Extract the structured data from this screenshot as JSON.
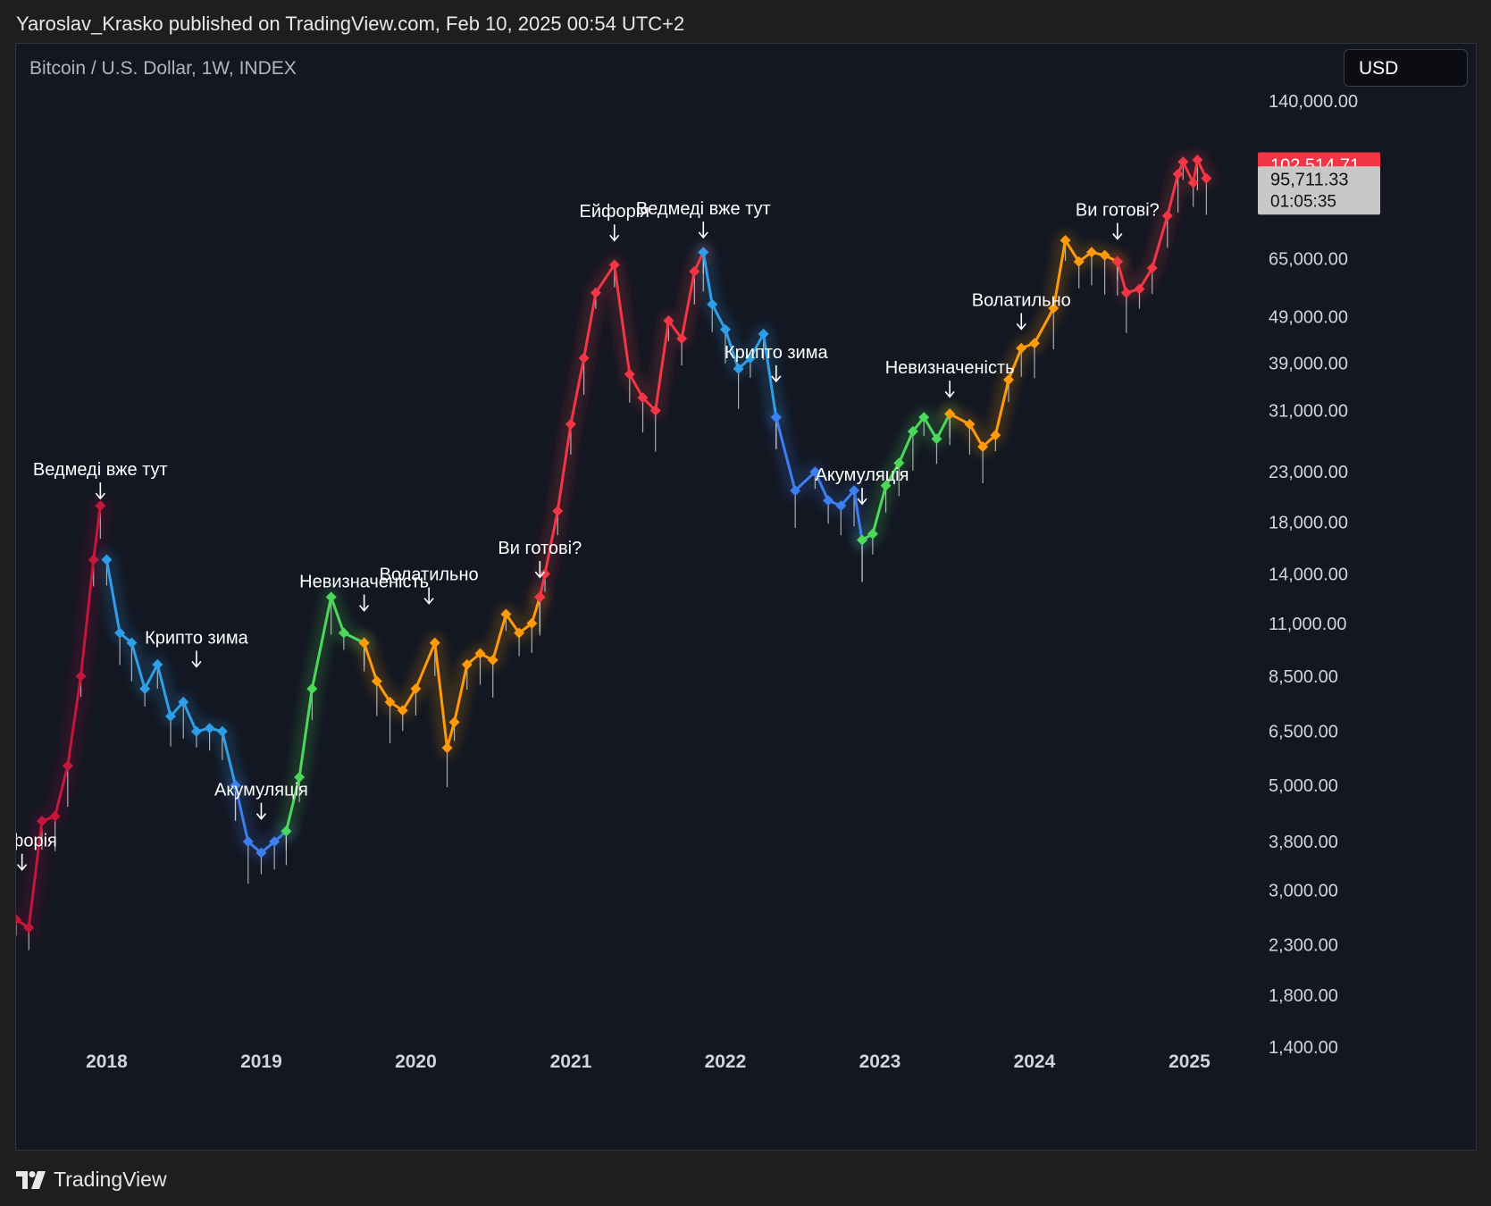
{
  "header": {
    "published_text": "Yaroslav_Krasko published on TradingView.com, Feb 10, 2025 00:54 UTC+2"
  },
  "chart_header": {
    "symbol": "Bitcoin / U.S. Dollar, 1W, INDEX",
    "currency_button": "USD"
  },
  "footer": {
    "brand": "TradingView",
    "logo_icon": "tradingview-logo-icon"
  },
  "colors": {
    "background": "#131722",
    "red": "#f23645",
    "dark_red": "#c2183b",
    "light_blue": "#2e9ee8",
    "blue": "#3d7ff0",
    "green": "#4cd95a",
    "orange": "#ff9b0a",
    "wick": "#d0d0d0",
    "axis_text": "#d1d4dc"
  },
  "chart_data": {
    "type": "line",
    "title": "Bitcoin / U.S. Dollar, 1W, INDEX",
    "scale": "log",
    "ylim": [
      1150,
      150000
    ],
    "xlim": [
      "2017-06-01",
      "2025-06-01"
    ],
    "grid": false,
    "y_ticks": [
      {
        "value": 1400,
        "label": "1,400.00"
      },
      {
        "value": 1800,
        "label": "1,800.00"
      },
      {
        "value": 2300,
        "label": "2,300.00"
      },
      {
        "value": 3000,
        "label": "3,000.00"
      },
      {
        "value": 3800,
        "label": "3,800.00"
      },
      {
        "value": 5000,
        "label": "5,000.00"
      },
      {
        "value": 6500,
        "label": "6,500.00"
      },
      {
        "value": 8500,
        "label": "8,500.00"
      },
      {
        "value": 11000,
        "label": "11,000.00"
      },
      {
        "value": 14000,
        "label": "14,000.00"
      },
      {
        "value": 18000,
        "label": "18,000.00"
      },
      {
        "value": 23000,
        "label": "23,000.00"
      },
      {
        "value": 31000,
        "label": "31,000.00"
      },
      {
        "value": 39000,
        "label": "39,000.00"
      },
      {
        "value": 49000,
        "label": "49,000.00"
      },
      {
        "value": 65000,
        "label": "65,000.00"
      },
      {
        "value": 140000,
        "label": "140,000.00"
      }
    ],
    "x_ticks": [
      {
        "date": "2018-01-01",
        "label": "2018"
      },
      {
        "date": "2019-01-01",
        "label": "2019"
      },
      {
        "date": "2020-01-01",
        "label": "2020"
      },
      {
        "date": "2021-01-01",
        "label": "2021"
      },
      {
        "date": "2022-01-01",
        "label": "2022"
      },
      {
        "date": "2023-01-01",
        "label": "2023"
      },
      {
        "date": "2024-01-01",
        "label": "2024"
      },
      {
        "date": "2025-01-01",
        "label": "2025"
      }
    ],
    "price_labels": {
      "high": {
        "value": 102514.71,
        "label": "102,514.71"
      },
      "last": {
        "value": 95711.33,
        "label": "95,711.33",
        "countdown": "01:05:35"
      }
    },
    "series": [
      {
        "points": [
          [
            "2017-06-01",
            2600
          ],
          [
            "2017-07-01",
            2500
          ],
          [
            "2017-08-01",
            4200
          ],
          [
            "2017-09-01",
            4300
          ],
          [
            "2017-10-01",
            5500
          ],
          [
            "2017-11-01",
            8500
          ],
          [
            "2017-12-01",
            15000
          ],
          [
            "2017-12-17",
            19500
          ]
        ]
      },
      {
        "points": [
          [
            "2018-01-01",
            15000
          ],
          [
            "2018-02-01",
            10500
          ],
          [
            "2018-03-01",
            10000
          ],
          [
            "2018-04-01",
            8000
          ],
          [
            "2018-05-01",
            9000
          ],
          [
            "2018-06-01",
            7000
          ],
          [
            "2018-07-01",
            7500
          ],
          [
            "2018-08-01",
            6500
          ],
          [
            "2018-09-01",
            6600
          ],
          [
            "2018-10-01",
            6500
          ],
          [
            "2018-11-01",
            5000
          ]
        ]
      },
      {
        "points": [
          [
            "2018-11-01",
            5000
          ],
          [
            "2018-12-01",
            3800
          ],
          [
            "2019-01-01",
            3600
          ],
          [
            "2019-02-01",
            3800
          ],
          [
            "2019-03-01",
            4000
          ]
        ]
      },
      {
        "points": [
          [
            "2019-03-01",
            4000
          ],
          [
            "2019-04-01",
            5200
          ],
          [
            "2019-05-01",
            8000
          ],
          [
            "2019-06-15",
            12500
          ],
          [
            "2019-07-15",
            10500
          ],
          [
            "2019-09-01",
            10000
          ]
        ]
      },
      {
        "points": [
          [
            "2019-09-01",
            10000
          ],
          [
            "2019-10-01",
            8300
          ],
          [
            "2019-11-01",
            7500
          ],
          [
            "2019-12-01",
            7200
          ],
          [
            "2020-01-01",
            8000
          ],
          [
            "2020-02-15",
            10000
          ],
          [
            "2020-03-15",
            6000
          ],
          [
            "2020-04-01",
            6800
          ],
          [
            "2020-05-01",
            9000
          ],
          [
            "2020-06-01",
            9500
          ],
          [
            "2020-07-01",
            9200
          ],
          [
            "2020-08-01",
            11500
          ],
          [
            "2020-09-01",
            10500
          ],
          [
            "2020-10-01",
            11000
          ],
          [
            "2020-10-20",
            12500
          ]
        ]
      },
      {
        "points": [
          [
            "2020-10-20",
            12500
          ],
          [
            "2020-11-01",
            14000
          ],
          [
            "2020-12-01",
            19000
          ],
          [
            "2021-01-01",
            29000
          ],
          [
            "2021-02-01",
            40000
          ],
          [
            "2021-03-01",
            55000
          ],
          [
            "2021-04-14",
            63000
          ],
          [
            "2021-05-20",
            37000
          ],
          [
            "2021-06-20",
            33000
          ],
          [
            "2021-07-20",
            31000
          ],
          [
            "2021-08-20",
            48000
          ],
          [
            "2021-09-20",
            44000
          ],
          [
            "2021-10-20",
            61000
          ],
          [
            "2021-11-10",
            67000
          ]
        ]
      },
      {
        "points": [
          [
            "2021-11-10",
            67000
          ],
          [
            "2021-12-01",
            52000
          ],
          [
            "2022-01-01",
            46000
          ],
          [
            "2022-02-01",
            38000
          ],
          [
            "2022-03-01",
            40000
          ],
          [
            "2022-04-01",
            45000
          ],
          [
            "2022-05-01",
            30000
          ]
        ]
      },
      {
        "points": [
          [
            "2022-05-01",
            30000
          ],
          [
            "2022-06-15",
            21000
          ],
          [
            "2022-08-01",
            23000
          ],
          [
            "2022-09-01",
            20000
          ],
          [
            "2022-10-01",
            19500
          ],
          [
            "2022-11-01",
            21000
          ],
          [
            "2022-11-20",
            16500
          ]
        ]
      },
      {
        "points": [
          [
            "2022-11-20",
            16500
          ],
          [
            "2022-12-15",
            17000
          ],
          [
            "2023-01-15",
            21500
          ],
          [
            "2023-02-15",
            24000
          ],
          [
            "2023-03-20",
            28000
          ],
          [
            "2023-04-15",
            30000
          ],
          [
            "2023-05-15",
            27000
          ],
          [
            "2023-06-15",
            30500
          ]
        ]
      },
      {
        "points": [
          [
            "2023-06-15",
            30500
          ],
          [
            "2023-08-01",
            29000
          ],
          [
            "2023-09-01",
            26000
          ],
          [
            "2023-10-01",
            27500
          ],
          [
            "2023-11-01",
            36000
          ],
          [
            "2023-12-01",
            42000
          ],
          [
            "2024-01-01",
            43000
          ],
          [
            "2024-02-15",
            51000
          ],
          [
            "2024-03-14",
            71000
          ],
          [
            "2024-04-15",
            64000
          ],
          [
            "2024-05-15",
            67000
          ],
          [
            "2024-06-15",
            66000
          ],
          [
            "2024-07-15",
            64000
          ]
        ]
      },
      {
        "points": [
          [
            "2024-07-15",
            64000
          ],
          [
            "2024-08-05",
            55000
          ],
          [
            "2024-09-05",
            56000
          ],
          [
            "2024-10-05",
            62000
          ],
          [
            "2024-11-10",
            80000
          ],
          [
            "2024-12-05",
            98000
          ],
          [
            "2024-12-17",
            104000
          ],
          [
            "2025-01-10",
            94000
          ],
          [
            "2025-01-20",
            105000
          ],
          [
            "2025-02-10",
            96000
          ]
        ]
      }
    ],
    "annotations": [
      {
        "text": "Ведмеді вже тут",
        "date": "2017-12-17",
        "value": 19500
      },
      {
        "text": "Крипто зима",
        "date": "2018-08-01",
        "value": 8600
      },
      {
        "text": "Акумуляція",
        "date": "2019-01-01",
        "value": 4100
      },
      {
        "text": "Невизначеність",
        "date": "2019-09-01",
        "value": 11300
      },
      {
        "text": "Волатильно",
        "date": "2020-02-01",
        "value": 11700
      },
      {
        "text": "Ви готові?",
        "date": "2020-10-20",
        "value": 13300
      },
      {
        "text": "Ейфорія",
        "date": "2021-04-14",
        "value": 68500
      },
      {
        "text": "Ведмеді вже тут",
        "date": "2021-11-10",
        "value": 69500
      },
      {
        "text": "Крипто зима",
        "date": "2022-05-01",
        "value": 34500
      },
      {
        "text": "Акумуляція",
        "date": "2022-11-20",
        "value": 19000
      },
      {
        "text": "Невизначеність",
        "date": "2023-06-15",
        "value": 32000
      },
      {
        "text": "Волатильно",
        "date": "2023-12-01",
        "value": 44500
      },
      {
        "text": "Ви готові?",
        "date": "2024-07-15",
        "value": 69000
      },
      {
        "text": "Ейфорія",
        "date": "2017-06-15",
        "value": 3200
      }
    ]
  }
}
